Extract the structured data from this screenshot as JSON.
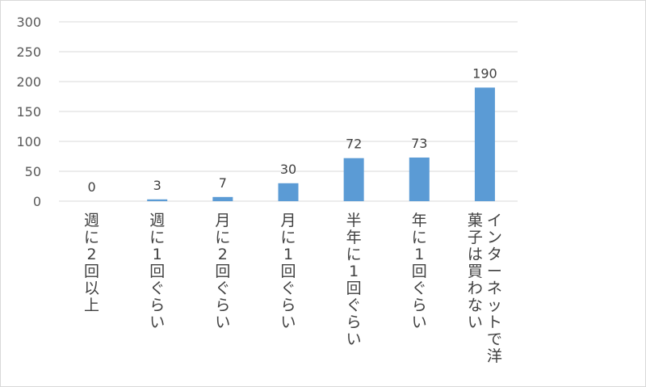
{
  "chart_data": {
    "type": "bar",
    "categories": [
      "週に2回以上",
      "週に1回ぐらい",
      "月に2回ぐらい",
      "月に1回ぐらい",
      "半年に1回ぐらい",
      "年に1回ぐらい",
      "インターネットで洋菓子は買わない"
    ],
    "category_lines": [
      [
        "週に2回以上"
      ],
      [
        "週に1回ぐらい"
      ],
      [
        "月に2回ぐらい"
      ],
      [
        "月に1回ぐらい"
      ],
      [
        "半年に1回ぐらい"
      ],
      [
        "年に1回ぐらい"
      ],
      [
        "インターネットで洋",
        "菓子は買わない"
      ]
    ],
    "values": [
      0,
      3,
      7,
      30,
      72,
      73,
      190
    ],
    "ylim": [
      0,
      300
    ],
    "yticks": [
      0,
      50,
      100,
      150,
      200,
      250,
      300
    ],
    "title": "",
    "xlabel": "",
    "ylabel": "",
    "grid": true,
    "legend": "none",
    "bar_color": "#5b9bd5",
    "grid_color": "#d9d9d9"
  }
}
